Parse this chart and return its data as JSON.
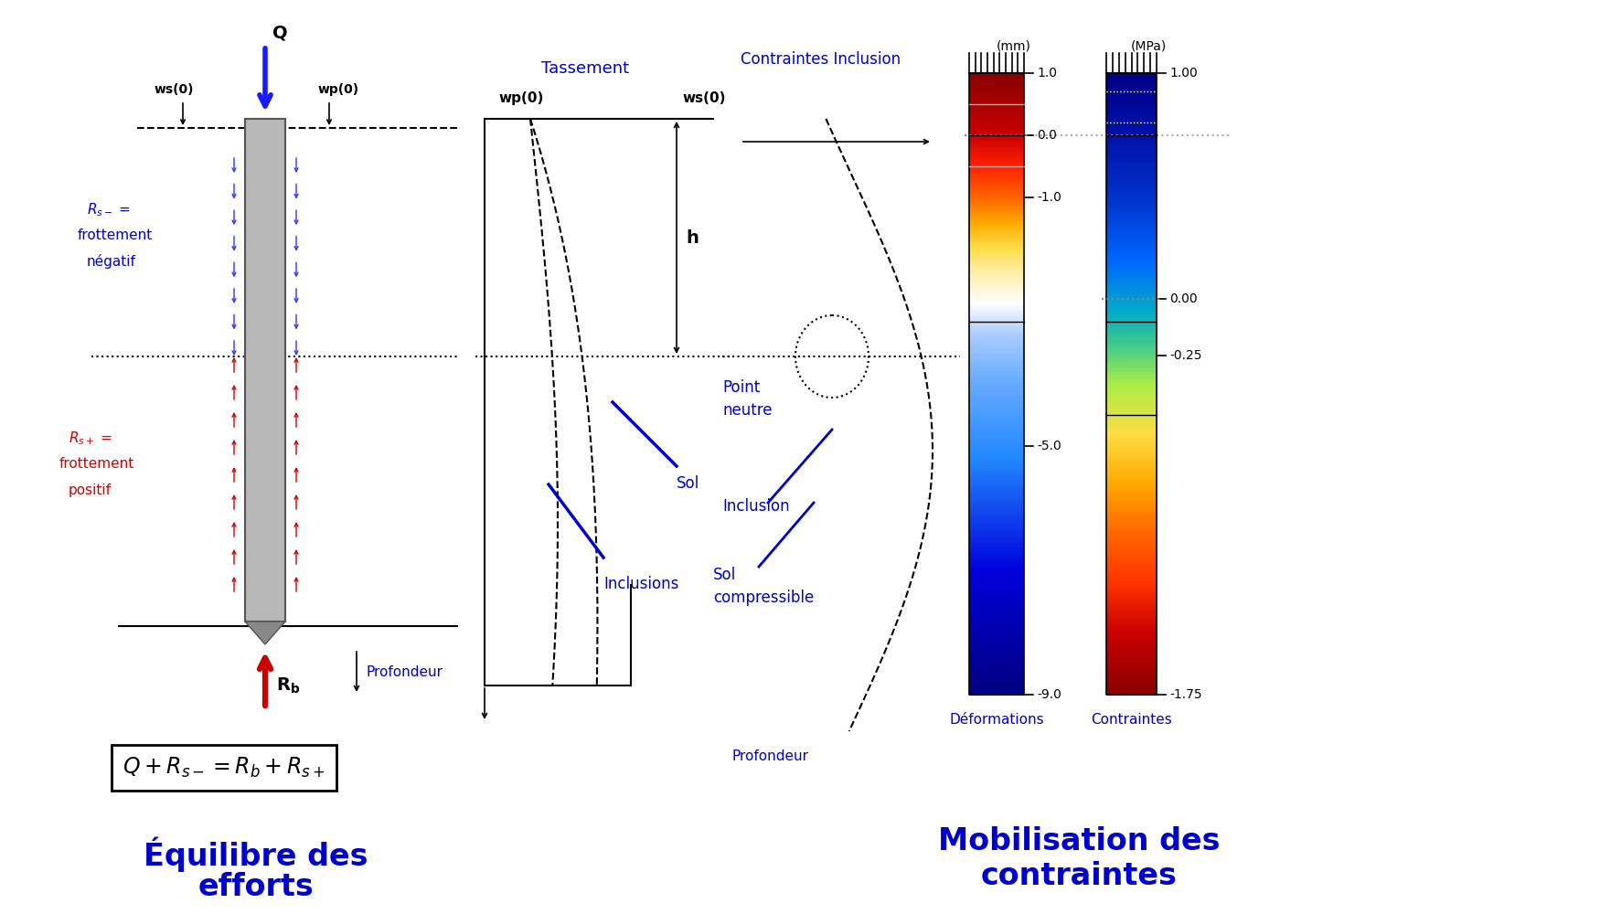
{
  "bg_color": "#ffffff",
  "title_color": "#0000cc",
  "label_blue": "#0000cc",
  "label_red": "#cc0000",
  "arrow_blue": "#1a1aff",
  "arrow_red": "#cc0000",
  "pile_gray": "#b8b8b8",
  "pile_dark": "#888888",
  "pile_edge": "#555555",
  "neutral_line_color": "#555555",
  "deform_labels": [
    "1.0",
    "0.0",
    "-1.0",
    "-5.0",
    "-9.0"
  ],
  "deform_values": [
    1.0,
    0.0,
    -1.0,
    -5.0,
    -9.0
  ],
  "contra_labels": [
    "1.00",
    "0.00",
    "-0.25",
    "-1.75"
  ],
  "contra_values": [
    1.0,
    0.0,
    -0.25,
    -1.75
  ],
  "fig_width": 17.5,
  "fig_height": 10.0
}
